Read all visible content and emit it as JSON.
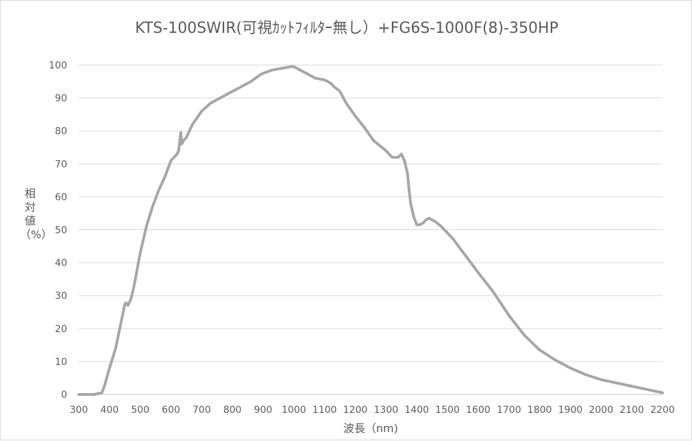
{
  "chart_data": {
    "type": "line",
    "title": "KTS-100SWIR(可視ｶｯﾄﾌｨﾙﾀｰ無し）+FG6S-1000F(8)-350HP",
    "xlabel": "波長（nm)",
    "ylabel": "相対値（%）",
    "xlim": [
      300,
      2200
    ],
    "ylim": [
      0,
      100
    ],
    "x_ticks": [
      "300",
      "400",
      "500",
      "600",
      "700",
      "800",
      "900",
      "1000",
      "1100",
      "1200",
      "1300",
      "1400",
      "1500",
      "1600",
      "1700",
      "1800",
      "1900",
      "2000",
      "2100",
      "2200"
    ],
    "y_ticks": [
      "0",
      "10",
      "20",
      "30",
      "40",
      "50",
      "60",
      "70",
      "80",
      "90",
      "100"
    ],
    "grid": "horizontal",
    "line_color": "#a6a6a6",
    "series": [
      {
        "x": [
          300,
          350,
          375,
          385,
          400,
          420,
          440,
          450,
          455,
          460,
          470,
          480,
          490,
          500,
          520,
          540,
          560,
          580,
          600,
          610,
          615,
          620,
          625,
          630,
          632,
          635,
          640,
          650,
          670,
          700,
          730,
          760,
          780,
          800,
          830,
          860,
          890,
          900,
          930,
          960,
          990,
          1000,
          1010,
          1020,
          1050,
          1070,
          1100,
          1120,
          1130,
          1150,
          1170,
          1200,
          1230,
          1260,
          1300,
          1320,
          1340,
          1350,
          1360,
          1370,
          1375,
          1380,
          1390,
          1400,
          1410,
          1420,
          1430,
          1440,
          1460,
          1480,
          1500,
          1520,
          1540,
          1560,
          1580,
          1600,
          1650,
          1700,
          1750,
          1800,
          1850,
          1900,
          1950,
          2000,
          2050,
          2100,
          2150,
          2200
        ],
        "values": [
          0,
          0,
          0.5,
          3,
          8,
          14,
          23,
          27.5,
          27.8,
          27,
          29,
          33,
          38,
          43,
          51,
          57,
          62,
          66,
          71,
          72,
          72.5,
          73,
          74,
          78,
          79.5,
          76,
          77,
          78,
          82,
          86,
          88.5,
          90,
          91,
          92,
          93.5,
          95,
          97,
          97.5,
          98.5,
          99,
          99.5,
          99.5,
          99,
          98.5,
          97,
          96,
          95.5,
          94.5,
          93.5,
          92,
          88.5,
          84.5,
          81,
          77,
          74,
          72,
          72,
          73,
          71,
          67,
          62,
          58,
          54,
          51.5,
          51.5,
          52,
          53,
          53.5,
          52.5,
          51,
          49,
          47,
          44.5,
          42,
          39.5,
          37,
          31,
          24,
          18,
          13.5,
          10.5,
          8,
          6,
          4.5,
          3.5,
          2.5,
          1.5,
          0.5
        ]
      }
    ]
  }
}
